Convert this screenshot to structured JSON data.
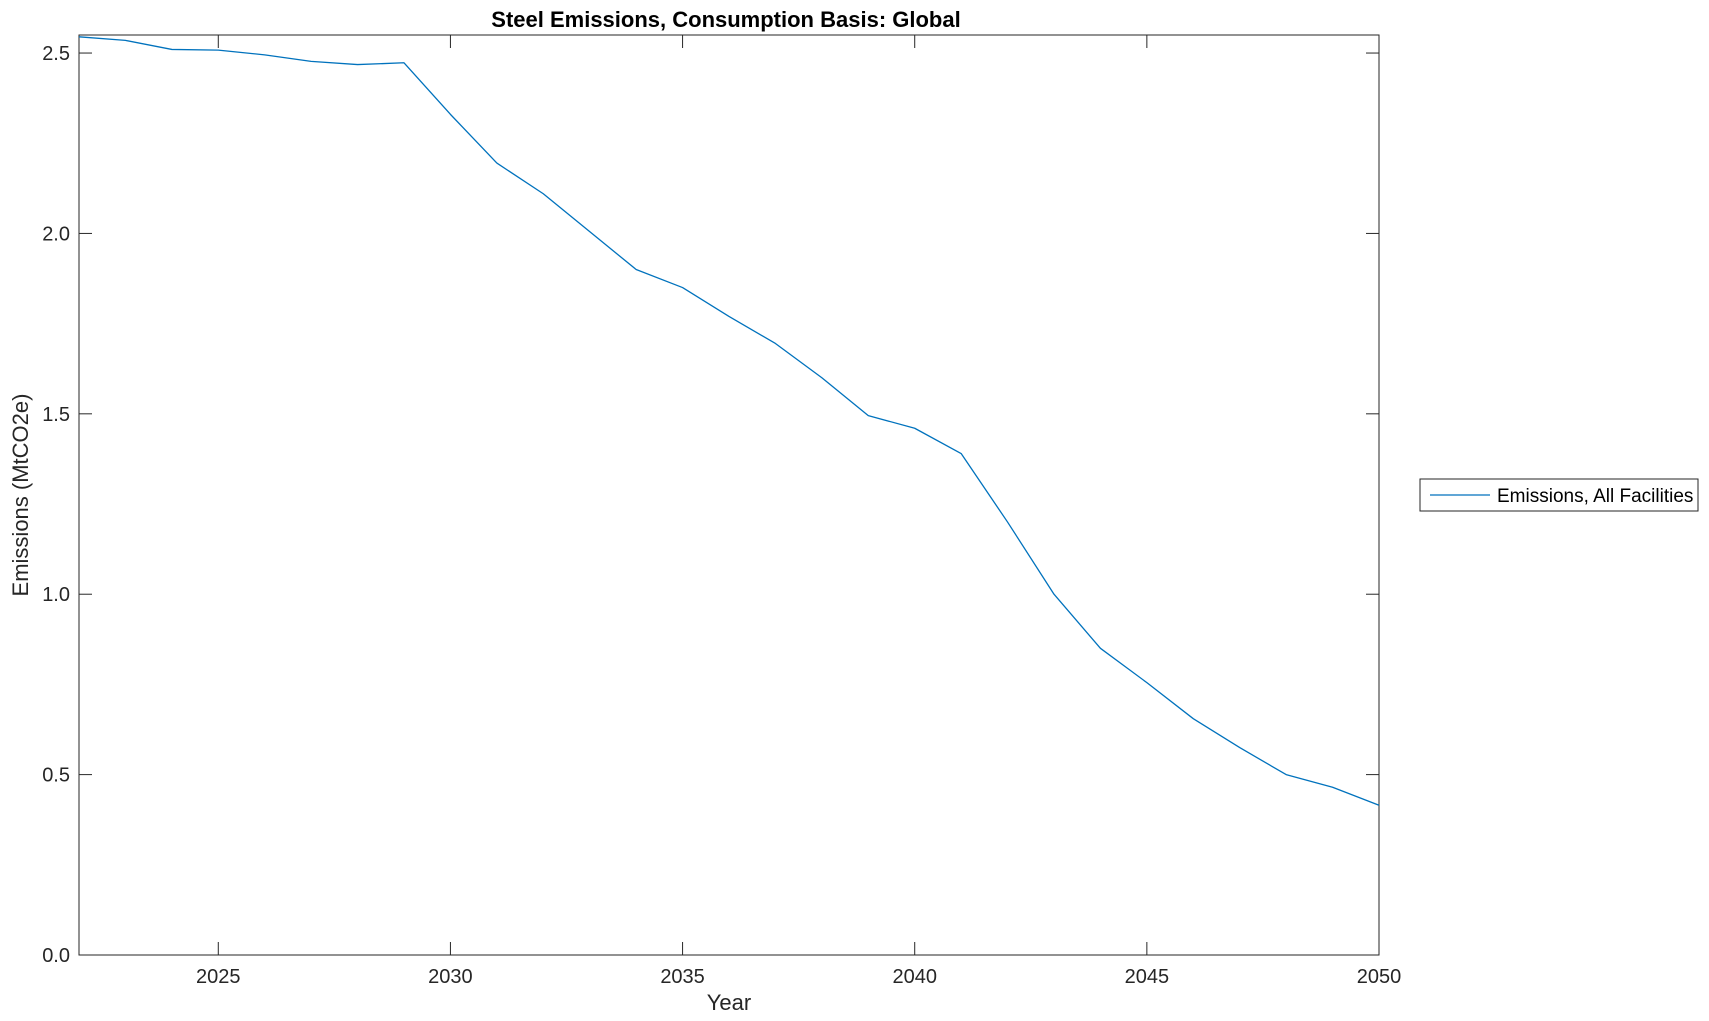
{
  "chart_data": {
    "type": "line",
    "title": "Steel Emissions, Consumption Basis: Global",
    "xlabel": "Year",
    "ylabel": "Emissions (MtCO2e)",
    "xlim": [
      2022,
      2050
    ],
    "ylim": [
      0,
      2.55
    ],
    "x_ticks": [
      2025,
      2030,
      2035,
      2040,
      2045,
      2050
    ],
    "y_ticks": [
      0.0,
      0.5,
      1.0,
      1.5,
      2.0,
      2.5
    ],
    "y_tick_labels": [
      "0.0",
      "0.5",
      "1.0",
      "1.5",
      "2.0",
      "2.5"
    ],
    "grid": false,
    "legend_position": "outside-right",
    "series": [
      {
        "name": "Emissions, All Facilities",
        "color": "#0072BD",
        "x": [
          2022,
          2023,
          2024,
          2025,
          2026,
          2027,
          2028,
          2029,
          2030,
          2031,
          2032,
          2033,
          2034,
          2035,
          2036,
          2037,
          2038,
          2039,
          2040,
          2041,
          2042,
          2043,
          2044,
          2045,
          2046,
          2047,
          2048,
          2049,
          2050
        ],
        "values": [
          2.545,
          2.535,
          2.51,
          2.508,
          2.495,
          2.477,
          2.468,
          2.473,
          2.33,
          2.195,
          2.11,
          2.005,
          1.9,
          1.85,
          1.77,
          1.695,
          1.6,
          1.495,
          1.46,
          1.39,
          1.2,
          1.0,
          0.85,
          0.755,
          0.655,
          0.575,
          0.5,
          0.465,
          0.415
        ]
      }
    ]
  }
}
